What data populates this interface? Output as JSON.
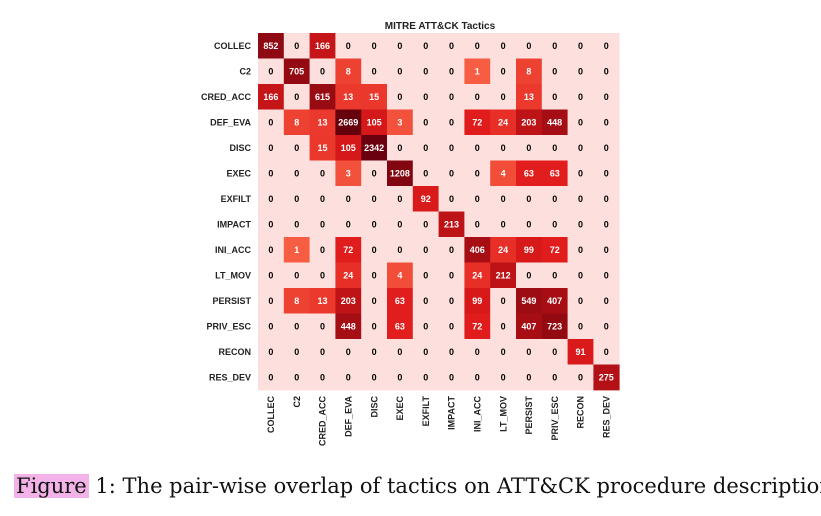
{
  "chart_data": {
    "type": "heatmap",
    "title": "MITRE ATT&CK Tactics",
    "rows": [
      "COLLEC",
      "C2",
      "CRED_ACC",
      "DEF_EVA",
      "DISC",
      "EXEC",
      "EXFILT",
      "IMPACT",
      "INI_ACC",
      "LT_MOV",
      "PERSIST",
      "PRIV_ESC",
      "RECON",
      "RES_DEV"
    ],
    "columns": [
      "COLLEC",
      "C2",
      "CRED_ACC",
      "DEF_EVA",
      "DISC",
      "EXEC",
      "EXFILT",
      "IMPACT",
      "INI_ACC",
      "LT_MOV",
      "PERSIST",
      "PRIV_ESC",
      "RECON",
      "RES_DEV"
    ],
    "values": [
      [
        852,
        0,
        166,
        0,
        0,
        0,
        0,
        0,
        0,
        0,
        0,
        0,
        0,
        0
      ],
      [
        0,
        705,
        0,
        8,
        0,
        0,
        0,
        0,
        1,
        0,
        8,
        0,
        0,
        0
      ],
      [
        166,
        0,
        615,
        13,
        15,
        0,
        0,
        0,
        0,
        0,
        13,
        0,
        0,
        0
      ],
      [
        0,
        8,
        13,
        2669,
        105,
        3,
        0,
        0,
        72,
        24,
        203,
        448,
        0,
        0
      ],
      [
        0,
        0,
        15,
        105,
        2342,
        0,
        0,
        0,
        0,
        0,
        0,
        0,
        0,
        0
      ],
      [
        0,
        0,
        0,
        3,
        0,
        1208,
        0,
        0,
        0,
        4,
        63,
        63,
        0,
        0
      ],
      [
        0,
        0,
        0,
        0,
        0,
        0,
        92,
        0,
        0,
        0,
        0,
        0,
        0,
        0
      ],
      [
        0,
        0,
        0,
        0,
        0,
        0,
        0,
        213,
        0,
        0,
        0,
        0,
        0,
        0
      ],
      [
        0,
        1,
        0,
        72,
        0,
        0,
        0,
        0,
        406,
        24,
        99,
        72,
        0,
        0
      ],
      [
        0,
        0,
        0,
        24,
        0,
        4,
        0,
        0,
        24,
        212,
        0,
        0,
        0,
        0
      ],
      [
        0,
        8,
        13,
        203,
        0,
        63,
        0,
        0,
        99,
        0,
        549,
        407,
        0,
        0
      ],
      [
        0,
        0,
        0,
        448,
        0,
        63,
        0,
        0,
        72,
        0,
        407,
        723,
        0,
        0
      ],
      [
        0,
        0,
        0,
        0,
        0,
        0,
        0,
        0,
        0,
        0,
        0,
        0,
        91,
        0
      ],
      [
        0,
        0,
        0,
        0,
        0,
        0,
        0,
        0,
        0,
        0,
        0,
        0,
        0,
        275
      ]
    ],
    "colormap": {
      "zero": "#fde0dd",
      "low": "#fb6a4a",
      "mid": "#e01b1b",
      "high": "#67000d"
    },
    "xlabel": "",
    "ylabel": "",
    "colorbar": false
  },
  "caption": {
    "figure_word": "Figure",
    "number": "1:",
    "text": "The pair-wise overlap of tactics on ATT&CK procedure descriptions."
  }
}
